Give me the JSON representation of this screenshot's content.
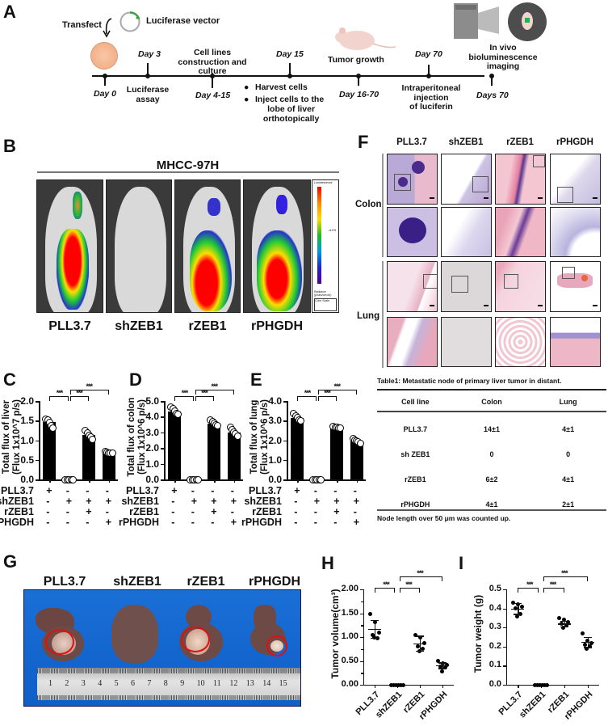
{
  "panels": {
    "A": {
      "letter": "A",
      "transfect": "Transfect",
      "vector": "Luciferase vector",
      "timeline": [
        {
          "day": "Day 0",
          "label": "",
          "pos": "below"
        },
        {
          "day": "Day 3",
          "label": "Luciferase assay",
          "pos": "above"
        },
        {
          "day": "Day 4-15",
          "label": "Cell lines construction and culture",
          "pos": "below"
        },
        {
          "day": "Day 15",
          "label": "",
          "pos": "above"
        },
        {
          "day": "Day 16-70",
          "label": "Tumor growth",
          "pos": "below"
        },
        {
          "day": "Day 70",
          "label": "Intraperitoneal injection of luciferin",
          "pos": "above"
        },
        {
          "day": "Days 70",
          "label": "In vivo bioluminescence imaging",
          "pos": "below"
        }
      ],
      "day0": "Day 0",
      "day3": "Day 3",
      "day3_label_1": "Luciferase",
      "day3_label_2": "assay",
      "day415": "Day 4-15",
      "cell_lines_1": "Cell lines",
      "cell_lines_2": "construction and",
      "cell_lines_3": "culture",
      "day15": "Day 15",
      "bullet1": "Harvest cells",
      "bullet2_1": "Inject cells to the",
      "bullet2_2": "lobe of liver",
      "bullet2_3": "orthotopically",
      "tumor_growth": "Tumor growth",
      "day1670": "Day 16-70",
      "day70": "Day 70",
      "ip_1": "Intraperitoneal",
      "ip_2": "injection",
      "ip_3": "of luciferin",
      "ivis_1": "In vivo",
      "ivis_2": "bioluminescence",
      "ivis_3": "imaging",
      "days70": "Days 70"
    },
    "B": {
      "letter": "B",
      "cell_line": "MHCC-97H",
      "groups": [
        "PLL3.7",
        "shZEB1",
        "rZEB1",
        "rPHGDH"
      ],
      "scale_title": "Luminescence",
      "scale_unit": "x10^5",
      "scale_footer_1": "Radiance (p/sec/cm²/sr)",
      "scale_footer_2": "Color Scale"
    },
    "C": {
      "letter": "C"
    },
    "D": {
      "letter": "D"
    },
    "E": {
      "letter": "E"
    },
    "F": {
      "letter": "F",
      "columns": [
        "PLL3.7",
        "shZEB1",
        "rZEB1",
        "rPHGDH"
      ],
      "rows": [
        "Colon",
        "Lung"
      ]
    },
    "G": {
      "letter": "G",
      "groups": [
        "PLL3.7",
        "shZEB1",
        "rZEB1",
        "rPHGDH"
      ],
      "ruler_numbers": [
        "1",
        "2",
        "3",
        "4",
        "5",
        "6",
        "7",
        "8",
        "9",
        "10",
        "11",
        "12",
        "13",
        "14",
        "15"
      ]
    },
    "H": {
      "letter": "H"
    },
    "I": {
      "letter": "I"
    }
  },
  "conditions": {
    "rows": [
      {
        "name": "PLL3.7",
        "values": [
          "+",
          "-",
          "-",
          "-"
        ]
      },
      {
        "name": "shZEB1",
        "values": [
          "-",
          "+",
          "+",
          "+"
        ]
      },
      {
        "name": "rZEB1",
        "values": [
          "-",
          "-",
          "+",
          "-"
        ]
      },
      {
        "name": "rPHGDH",
        "values": [
          "-",
          "-",
          "-",
          "+"
        ]
      }
    ]
  },
  "table1": {
    "caption": "Table1: Metastatic node of primary liver tumor in distant.",
    "headers": [
      "Cell line",
      "Colon",
      "Lung"
    ],
    "rows": [
      [
        "PLL3.7",
        "14±1",
        "4±1"
      ],
      [
        "sh ZEB1",
        "0",
        "0"
      ],
      [
        "rZEB1",
        "6±2",
        "4±1"
      ],
      [
        "rPHGDH",
        "4±1",
        "2±1"
      ]
    ],
    "footnote": "Node length over 50  μm was counted up."
  },
  "sig_label": "***",
  "chart_data": [
    {
      "panel": "C",
      "type": "bar",
      "categories": [
        "PLL3.7",
        "shZEB1",
        "rZEB1",
        "rPHGDH"
      ],
      "values": [
        1.47,
        0.0,
        1.13,
        0.69
      ],
      "points": [
        [
          1.53,
          1.52,
          1.45,
          1.38,
          1.3
        ],
        [
          0,
          0,
          0,
          0,
          0
        ],
        [
          1.25,
          1.18,
          1.12,
          1.08,
          1.03
        ],
        [
          0.72,
          0.7,
          0.68,
          0.67,
          0.66
        ]
      ],
      "ylabel": "Total flux of liver (Flux 1x10^7 p/s)",
      "yticks": [
        "0.0",
        "0.5",
        "1.0",
        "1.5",
        "2.0"
      ],
      "ylim": [
        0,
        2.0
      ],
      "significance": [
        [
          "PLL3.7",
          "shZEB1",
          "***"
        ],
        [
          "shZEB1",
          "rZEB1",
          "***"
        ],
        [
          "shZEB1",
          "rPHGDH",
          "***"
        ]
      ]
    },
    {
      "panel": "D",
      "type": "bar",
      "categories": [
        "PLL3.7",
        "shZEB1",
        "rZEB1",
        "rPHGDH"
      ],
      "values": [
        4.35,
        0.0,
        3.55,
        3.0
      ],
      "points": [
        [
          4.6,
          4.5,
          4.35,
          4.2,
          4.15
        ],
        [
          0,
          0,
          0,
          0,
          0
        ],
        [
          3.8,
          3.7,
          3.6,
          3.5,
          3.45
        ],
        [
          3.3,
          3.15,
          3.0,
          2.9,
          2.75
        ]
      ],
      "ylabel": "Total flux of colon (Flux 1x10^6 p/s)",
      "yticks": [
        "0.0",
        "1.0",
        "2.0",
        "3.0",
        "4.0",
        "5.0"
      ],
      "ylim": [
        0,
        5.0
      ],
      "significance": [
        [
          "PLL3.7",
          "shZEB1",
          "***"
        ],
        [
          "shZEB1",
          "rZEB1",
          "***"
        ],
        [
          "shZEB1",
          "rPHGDH",
          "***"
        ]
      ]
    },
    {
      "panel": "E",
      "type": "bar",
      "categories": [
        "PLL3.7",
        "shZEB1",
        "rZEB1",
        "rPHGDH"
      ],
      "values": [
        3.15,
        0.0,
        2.65,
        1.95
      ],
      "points": [
        [
          3.35,
          3.25,
          3.15,
          3.05,
          3.0
        ],
        [
          0,
          0,
          0,
          0,
          0
        ],
        [
          2.7,
          2.68,
          2.65,
          2.6,
          2.6
        ],
        [
          2.1,
          2.0,
          1.95,
          1.9,
          1.85
        ]
      ],
      "ylabel": "Total flux of lung (Flux 1x10^6 p/s)",
      "yticks": [
        "0.0",
        "1.0",
        "2.0",
        "3.0",
        "4.0"
      ],
      "ylim": [
        0,
        4.0
      ],
      "significance": [
        [
          "PLL3.7",
          "shZEB1",
          "***"
        ],
        [
          "shZEB1",
          "rZEB1",
          "***"
        ],
        [
          "shZEB1",
          "rPHGDH",
          "***"
        ]
      ]
    },
    {
      "panel": "H",
      "type": "scatter",
      "categories": [
        "PLL3.7",
        "shZEB1",
        "rZEB1",
        "rPHGDH"
      ],
      "means": [
        1.17,
        0.0,
        0.87,
        0.41
      ],
      "sd": [
        0.19,
        0.0,
        0.16,
        0.06
      ],
      "points": [
        [
          1.48,
          1.32,
          1.1,
          1.05,
          0.98,
          1.0
        ],
        [
          0,
          0,
          0,
          0,
          0,
          0
        ],
        [
          1.05,
          1.0,
          0.88,
          0.8,
          0.75,
          0.7
        ],
        [
          0.5,
          0.45,
          0.42,
          0.38,
          0.36,
          0.28
        ]
      ],
      "ylabel": "Tumor volume(cm³)",
      "yticks": [
        "0.00",
        "0.50",
        "1.00",
        "1.50",
        "2.00"
      ],
      "ylim": [
        0,
        2.0
      ],
      "significance": [
        [
          "PLL3.7",
          "shZEB1",
          "***"
        ],
        [
          "shZEB1",
          "rZEB1",
          "***"
        ],
        [
          "shZEB1",
          "rPHGDH",
          "***"
        ]
      ]
    },
    {
      "panel": "I",
      "type": "scatter",
      "categories": [
        "PLL3.7",
        "shZEB1",
        "rZEB1",
        "rPHGDH"
      ],
      "means": [
        0.4,
        0.0,
        0.32,
        0.225
      ],
      "sd": [
        0.028,
        0.0,
        0.015,
        0.027
      ],
      "points": [
        [
          0.43,
          0.42,
          0.41,
          0.4,
          0.37,
          0.36
        ],
        [
          0,
          0,
          0,
          0,
          0,
          0
        ],
        [
          0.35,
          0.34,
          0.33,
          0.32,
          0.31,
          0.3
        ],
        [
          0.27,
          0.23,
          0.22,
          0.21,
          0.2,
          0.19
        ]
      ],
      "ylabel": "Tumor weight (g)",
      "yticks": [
        "0.0",
        "0.1",
        "0.2",
        "0.3",
        "0.4",
        "0.5"
      ],
      "ylim": [
        0,
        0.5
      ],
      "significance": [
        [
          "PLL3.7",
          "shZEB1",
          "***"
        ],
        [
          "shZEB1",
          "rZEB1",
          "***"
        ],
        [
          "shZEB1",
          "rPHGDH",
          "***"
        ]
      ]
    }
  ]
}
